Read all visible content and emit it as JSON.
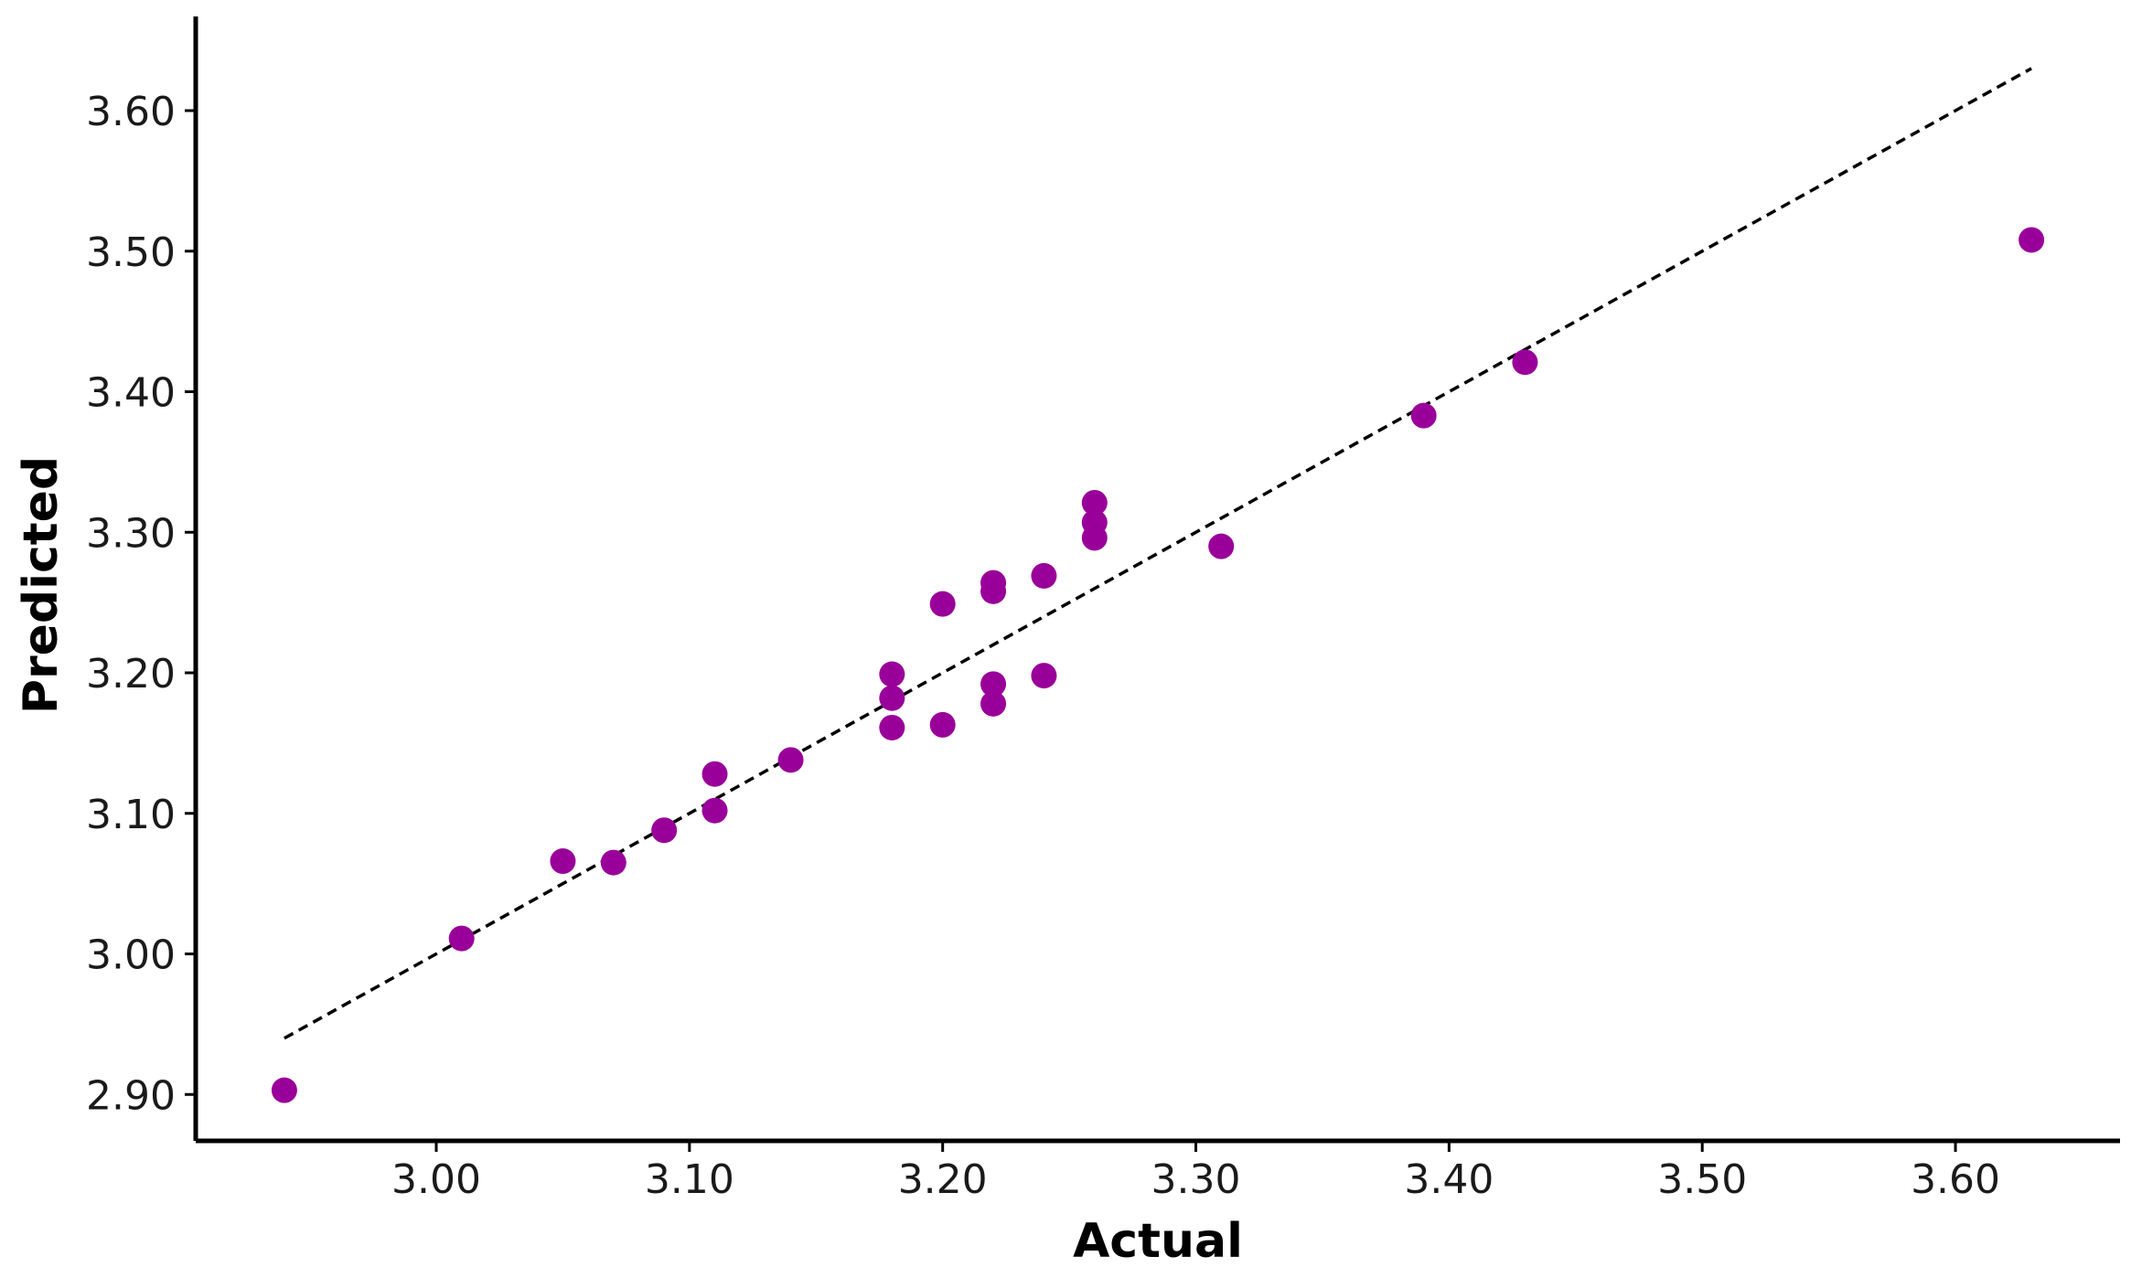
{
  "chart_data": {
    "type": "scatter",
    "title": "",
    "xlabel": "Actual",
    "ylabel": "Predicted",
    "xlim": [
      2.905,
      3.665
    ],
    "ylim": [
      2.867,
      3.667
    ],
    "xticks": [
      "3.00",
      "3.10",
      "3.20",
      "3.30",
      "3.40",
      "3.50",
      "3.60"
    ],
    "yticks": [
      "2.90",
      "3.00",
      "3.10",
      "3.20",
      "3.30",
      "3.40",
      "3.50",
      "3.60"
    ],
    "grid": false,
    "legend": "none",
    "point_color": "#990099",
    "reference_line": {
      "style": "dashed",
      "color": "#000000",
      "from": [
        2.94,
        2.94
      ],
      "to": [
        3.63,
        3.63
      ]
    },
    "points": [
      {
        "x": 2.94,
        "y": 2.903
      },
      {
        "x": 3.01,
        "y": 3.011
      },
      {
        "x": 3.05,
        "y": 3.066
      },
      {
        "x": 3.07,
        "y": 3.065
      },
      {
        "x": 3.09,
        "y": 3.088
      },
      {
        "x": 3.11,
        "y": 3.102
      },
      {
        "x": 3.11,
        "y": 3.128
      },
      {
        "x": 3.14,
        "y": 3.138
      },
      {
        "x": 3.18,
        "y": 3.161
      },
      {
        "x": 3.18,
        "y": 3.182
      },
      {
        "x": 3.18,
        "y": 3.199
      },
      {
        "x": 3.2,
        "y": 3.163
      },
      {
        "x": 3.2,
        "y": 3.249
      },
      {
        "x": 3.22,
        "y": 3.178
      },
      {
        "x": 3.22,
        "y": 3.192
      },
      {
        "x": 3.22,
        "y": 3.258
      },
      {
        "x": 3.22,
        "y": 3.264
      },
      {
        "x": 3.24,
        "y": 3.198
      },
      {
        "x": 3.24,
        "y": 3.269
      },
      {
        "x": 3.26,
        "y": 3.296
      },
      {
        "x": 3.26,
        "y": 3.307
      },
      {
        "x": 3.26,
        "y": 3.321
      },
      {
        "x": 3.31,
        "y": 3.29
      },
      {
        "x": 3.39,
        "y": 3.383
      },
      {
        "x": 3.43,
        "y": 3.421
      },
      {
        "x": 3.63,
        "y": 3.508
      }
    ]
  }
}
